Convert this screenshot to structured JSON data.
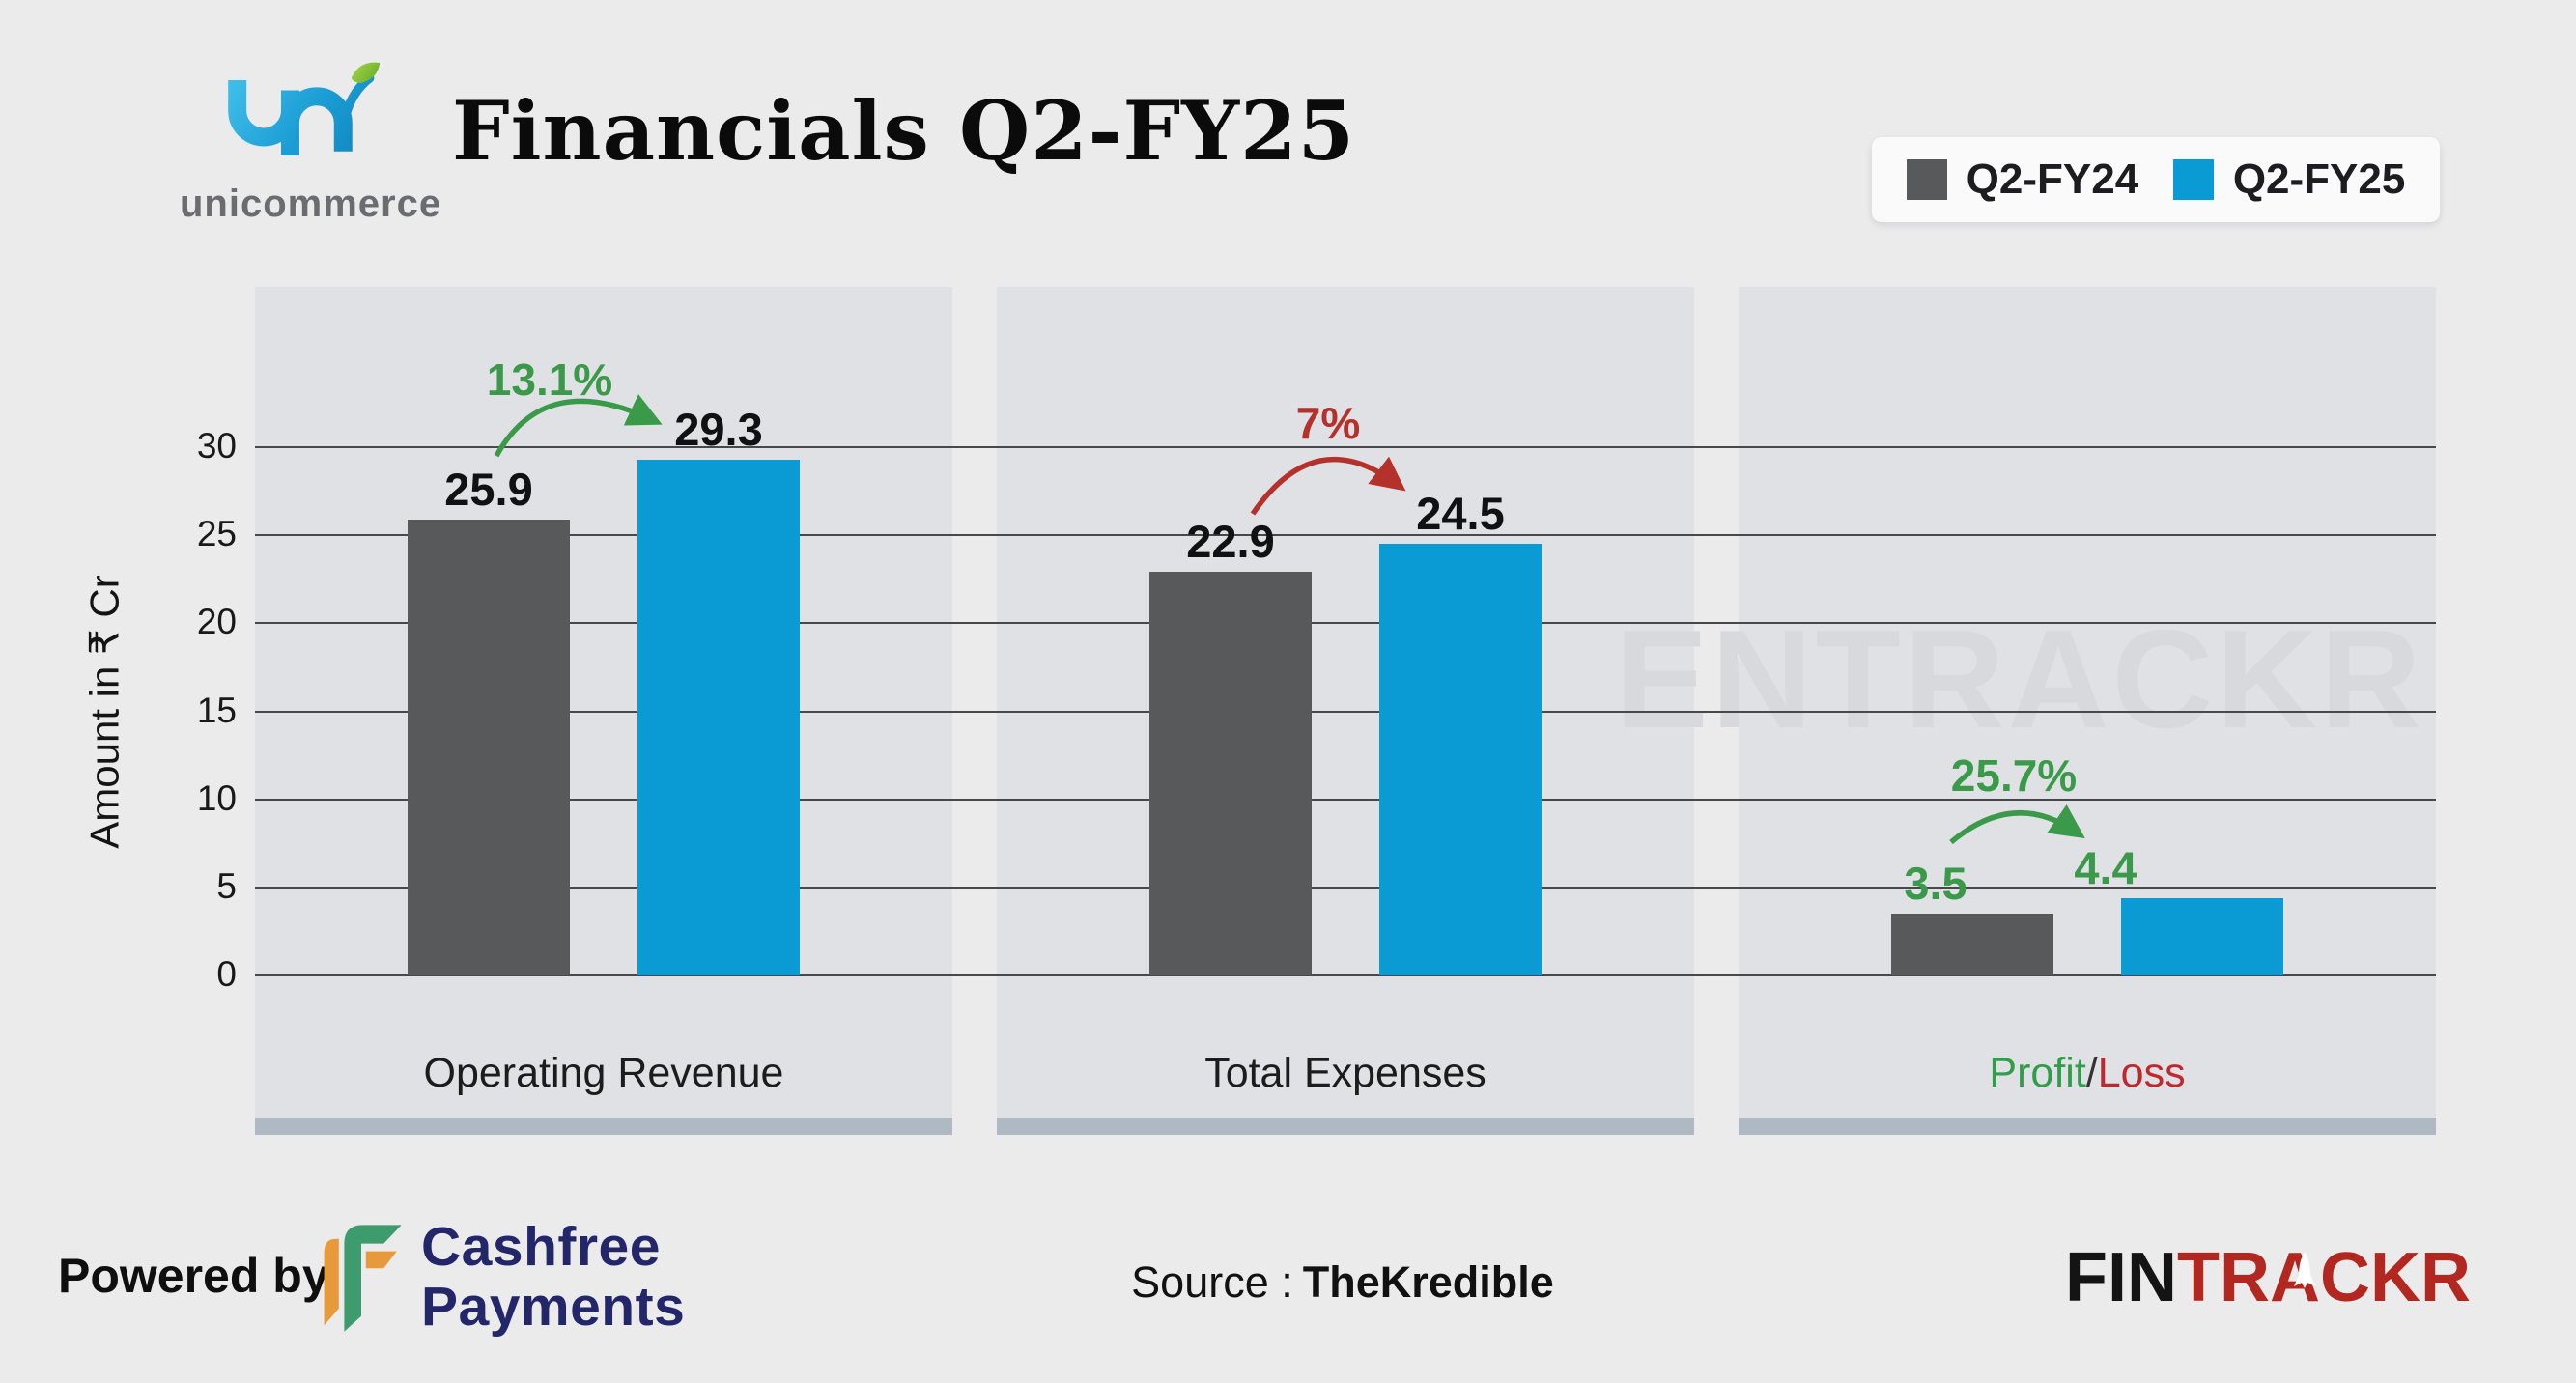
{
  "header": {
    "title": "Financials Q2-FY25",
    "logo_wordmark": "unicommerce"
  },
  "legend": {
    "items": [
      {
        "label": "Q2-FY24",
        "color": "#58595B"
      },
      {
        "label": "Q2-FY25",
        "color": "#0A9BD4"
      }
    ]
  },
  "chart_data": {
    "type": "bar",
    "title": "Financials Q2-FY25",
    "ylabel": "Amount in ₹ Cr",
    "yticks": [
      0,
      5,
      10,
      15,
      20,
      25,
      30
    ],
    "ylim": [
      0,
      30
    ],
    "grid": true,
    "legend_position": "top-right",
    "watermark": "ENTRACKR",
    "categories": [
      {
        "text": "Operating Revenue"
      },
      {
        "text": "Total Expenses"
      },
      {
        "parts": [
          {
            "text": "Profit",
            "color": "#2F9E49"
          },
          {
            "text": "/",
            "color": "#333333"
          },
          {
            "text": "Loss",
            "color": "#C02830"
          }
        ]
      }
    ],
    "series": [
      {
        "name": "Q2-FY24",
        "color": "#58595B",
        "values": [
          25.9,
          22.9,
          3.5
        ]
      },
      {
        "name": "Q2-FY25",
        "color": "#0A9BD4",
        "values": [
          29.3,
          24.5,
          4.4
        ]
      }
    ],
    "value_label_colors": [
      "#111113",
      "#111113",
      "#3B9A4A"
    ],
    "change_labels": [
      {
        "text": "13.1%",
        "direction": "up",
        "color": "#3B9A4A"
      },
      {
        "text": "7%",
        "direction": "up",
        "color": "#B5312B"
      },
      {
        "text": "25.7%",
        "direction": "up",
        "color": "#3B9A4A"
      }
    ]
  },
  "footer": {
    "powered_by": "Powered by",
    "cashfree_line1": "Cashfree",
    "cashfree_line2": "Payments",
    "source_label": "Source :",
    "source_name": "TheKredible",
    "fintrackr_black": "FIN",
    "fintrackr_red": "TRACKR"
  }
}
